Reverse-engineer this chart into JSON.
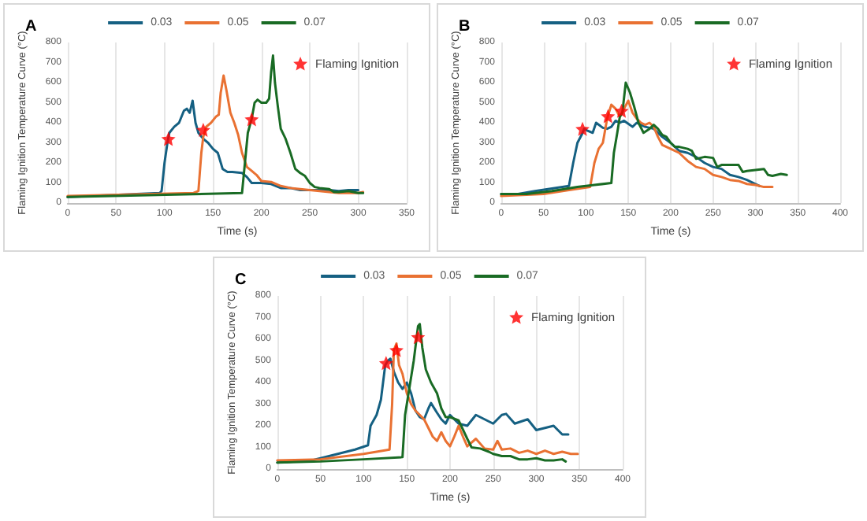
{
  "chart_data": [
    {
      "type": "line",
      "title": "A",
      "xlabel": "Time (s)",
      "ylabel": "Flaming Ignition Temperature Curve (°C)",
      "xlim": [
        0,
        350
      ],
      "xticks": [
        0,
        50,
        100,
        150,
        200,
        250,
        300,
        350
      ],
      "ylim": [
        0,
        800
      ],
      "yticks": [
        0,
        100,
        200,
        300,
        400,
        500,
        600,
        700,
        800
      ],
      "grid": "x",
      "legend": "top",
      "marker": "none",
      "line_style": "solid",
      "series": [
        {
          "name": "0.03",
          "color": "#156082",
          "x": [
            0,
            95,
            97,
            100,
            103,
            105,
            110,
            115,
            120,
            123,
            126,
            129,
            132,
            135,
            140,
            145,
            150,
            155,
            160,
            165,
            170,
            180,
            185,
            190,
            200,
            210,
            220,
            230,
            240,
            250,
            260,
            270,
            280,
            290,
            300
          ],
          "values": [
            30,
            50,
            60,
            200,
            300,
            350,
            380,
            400,
            460,
            470,
            450,
            510,
            400,
            350,
            320,
            300,
            270,
            250,
            170,
            155,
            155,
            150,
            130,
            100,
            100,
            95,
            75,
            75,
            65,
            65,
            65,
            65,
            60,
            65,
            65
          ]
        },
        {
          "name": "0.05",
          "color": "#e97132",
          "x": [
            0,
            130,
            135,
            138,
            140,
            143,
            148,
            153,
            156,
            158,
            161,
            164,
            168,
            172,
            176,
            180,
            185,
            190,
            195,
            200,
            210,
            220,
            230,
            240,
            250,
            260,
            270,
            280,
            290,
            300,
            305
          ],
          "values": [
            35,
            50,
            60,
            250,
            330,
            380,
            400,
            430,
            440,
            550,
            635,
            560,
            450,
            400,
            340,
            250,
            180,
            160,
            140,
            110,
            105,
            85,
            75,
            70,
            65,
            60,
            55,
            50,
            50,
            50,
            55
          ]
        },
        {
          "name": "0.07",
          "color": "#196b24",
          "x": [
            0,
            180,
            183,
            186,
            190,
            193,
            196,
            200,
            205,
            208,
            210,
            212,
            214,
            217,
            220,
            225,
            230,
            235,
            240,
            245,
            250,
            255,
            260,
            270,
            275,
            280,
            290,
            300,
            305
          ],
          "values": [
            30,
            50,
            200,
            350,
            420,
            500,
            515,
            500,
            500,
            520,
            650,
            735,
            600,
            480,
            370,
            320,
            250,
            170,
            150,
            135,
            100,
            80,
            75,
            70,
            55,
            55,
            60,
            50,
            50
          ]
        },
        {
          "name": "Flaming Ignition",
          "type": "scatter",
          "marker": "star",
          "color": "#ff0000",
          "x": [
            104,
            140,
            190
          ],
          "values": [
            320,
            365,
            418
          ]
        }
      ]
    },
    {
      "type": "line",
      "title": "B",
      "xlabel": "Time (s)",
      "ylabel": "Flaming Ignition Temperature Curve (°C)",
      "xlim": [
        0,
        400
      ],
      "xticks": [
        0,
        50,
        100,
        150,
        200,
        250,
        300,
        350,
        400
      ],
      "ylim": [
        0,
        800
      ],
      "yticks": [
        0,
        100,
        200,
        300,
        400,
        500,
        600,
        700,
        800
      ],
      "grid": "x",
      "legend": "top",
      "marker": "none",
      "line_style": "solid",
      "series": [
        {
          "name": "0.03",
          "color": "#156082",
          "x": [
            0,
            20,
            40,
            80,
            85,
            90,
            95,
            98,
            102,
            108,
            112,
            120,
            125,
            130,
            135,
            140,
            145,
            150,
            155,
            160,
            165,
            170,
            180,
            190,
            200,
            210,
            220,
            230,
            240,
            250,
            260,
            270,
            280,
            290,
            300,
            305
          ],
          "values": [
            45,
            45,
            60,
            85,
            200,
            300,
            340,
            370,
            360,
            350,
            400,
            375,
            370,
            380,
            410,
            400,
            410,
            395,
            380,
            400,
            390,
            380,
            370,
            330,
            300,
            260,
            250,
            230,
            200,
            180,
            170,
            140,
            130,
            115,
            95,
            85
          ]
        },
        {
          "name": "0.05",
          "color": "#e97132",
          "x": [
            0,
            50,
            80,
            105,
            110,
            115,
            120,
            125,
            130,
            135,
            140,
            145,
            150,
            155,
            160,
            165,
            170,
            175,
            180,
            185,
            190,
            200,
            210,
            220,
            230,
            240,
            250,
            260,
            270,
            280,
            290,
            300,
            310,
            320
          ],
          "values": [
            35,
            45,
            65,
            80,
            200,
            270,
            300,
            420,
            490,
            470,
            430,
            470,
            510,
            450,
            420,
            400,
            390,
            400,
            380,
            330,
            290,
            270,
            250,
            210,
            180,
            170,
            140,
            130,
            115,
            110,
            95,
            90,
            80,
            80
          ]
        },
        {
          "name": "0.07",
          "color": "#196b24",
          "x": [
            0,
            30,
            60,
            90,
            110,
            130,
            133,
            137,
            140,
            143,
            147,
            152,
            157,
            162,
            168,
            175,
            180,
            185,
            190,
            195,
            200,
            205,
            210,
            220,
            225,
            230,
            240,
            250,
            255,
            260,
            270,
            280,
            285,
            290,
            300,
            310,
            315,
            320,
            330,
            337
          ],
          "values": [
            45,
            45,
            60,
            80,
            90,
            100,
            250,
            350,
            430,
            450,
            600,
            550,
            480,
            400,
            350,
            370,
            390,
            370,
            340,
            330,
            300,
            280,
            280,
            270,
            260,
            220,
            230,
            225,
            180,
            190,
            190,
            190,
            155,
            160,
            165,
            170,
            140,
            135,
            145,
            140
          ]
        },
        {
          "name": "Flaming Ignition",
          "type": "scatter",
          "marker": "star",
          "color": "#ff0000",
          "x": [
            96,
            126,
            142
          ],
          "values": [
            370,
            433,
            460
          ]
        }
      ]
    },
    {
      "type": "line",
      "title": "C",
      "xlabel": "Time (s)",
      "ylabel": "Flaming Ignition Temperature Curve (°C)",
      "xlim": [
        0,
        400
      ],
      "xticks": [
        0,
        50,
        100,
        150,
        200,
        250,
        300,
        350,
        400
      ],
      "ylim": [
        0,
        800
      ],
      "yticks": [
        0,
        100,
        200,
        300,
        400,
        500,
        600,
        700,
        800
      ],
      "grid": "x",
      "legend": "top",
      "marker": "none",
      "line_style": "solid",
      "series": [
        {
          "name": "0.03",
          "color": "#156082",
          "x": [
            0,
            40,
            90,
            105,
            108,
            115,
            120,
            125,
            128,
            131,
            135,
            140,
            145,
            150,
            155,
            160,
            165,
            170,
            175,
            178,
            185,
            190,
            195,
            200,
            205,
            210,
            220,
            230,
            240,
            250,
            260,
            265,
            275,
            290,
            300,
            310,
            320,
            330,
            337
          ],
          "values": [
            30,
            40,
            90,
            110,
            200,
            250,
            320,
            480,
            500,
            510,
            450,
            400,
            370,
            400,
            350,
            270,
            240,
            230,
            280,
            305,
            260,
            230,
            210,
            250,
            230,
            210,
            200,
            250,
            230,
            210,
            250,
            255,
            210,
            230,
            180,
            190,
            200,
            160,
            160
          ]
        },
        {
          "name": "0.05",
          "color": "#e97132",
          "x": [
            0,
            50,
            100,
            130,
            133,
            135,
            138,
            141,
            145,
            150,
            155,
            160,
            165,
            170,
            180,
            185,
            190,
            195,
            200,
            205,
            210,
            215,
            220,
            230,
            240,
            250,
            255,
            260,
            270,
            280,
            290,
            300,
            310,
            320,
            330,
            340,
            348
          ],
          "values": [
            40,
            45,
            70,
            90,
            300,
            550,
            580,
            480,
            440,
            350,
            300,
            270,
            250,
            230,
            150,
            130,
            170,
            130,
            105,
            150,
            200,
            150,
            105,
            140,
            95,
            90,
            130,
            90,
            95,
            75,
            85,
            70,
            85,
            70,
            80,
            70,
            70
          ]
        },
        {
          "name": "0.07",
          "color": "#196b24",
          "x": [
            0,
            50,
            100,
            145,
            148,
            152,
            158,
            163,
            165,
            168,
            172,
            178,
            185,
            190,
            195,
            200,
            210,
            220,
            225,
            235,
            245,
            250,
            260,
            270,
            280,
            290,
            300,
            310,
            320,
            330,
            334
          ],
          "values": [
            30,
            35,
            45,
            55,
            250,
            350,
            500,
            660,
            670,
            560,
            460,
            400,
            350,
            280,
            240,
            240,
            225,
            140,
            100,
            95,
            80,
            70,
            60,
            60,
            45,
            45,
            50,
            40,
            40,
            45,
            35
          ]
        },
        {
          "name": "Flaming Ignition",
          "type": "scatter",
          "marker": "star",
          "color": "#ff0000",
          "x": [
            126,
            138,
            163
          ],
          "values": [
            490,
            550,
            610
          ]
        }
      ]
    }
  ]
}
